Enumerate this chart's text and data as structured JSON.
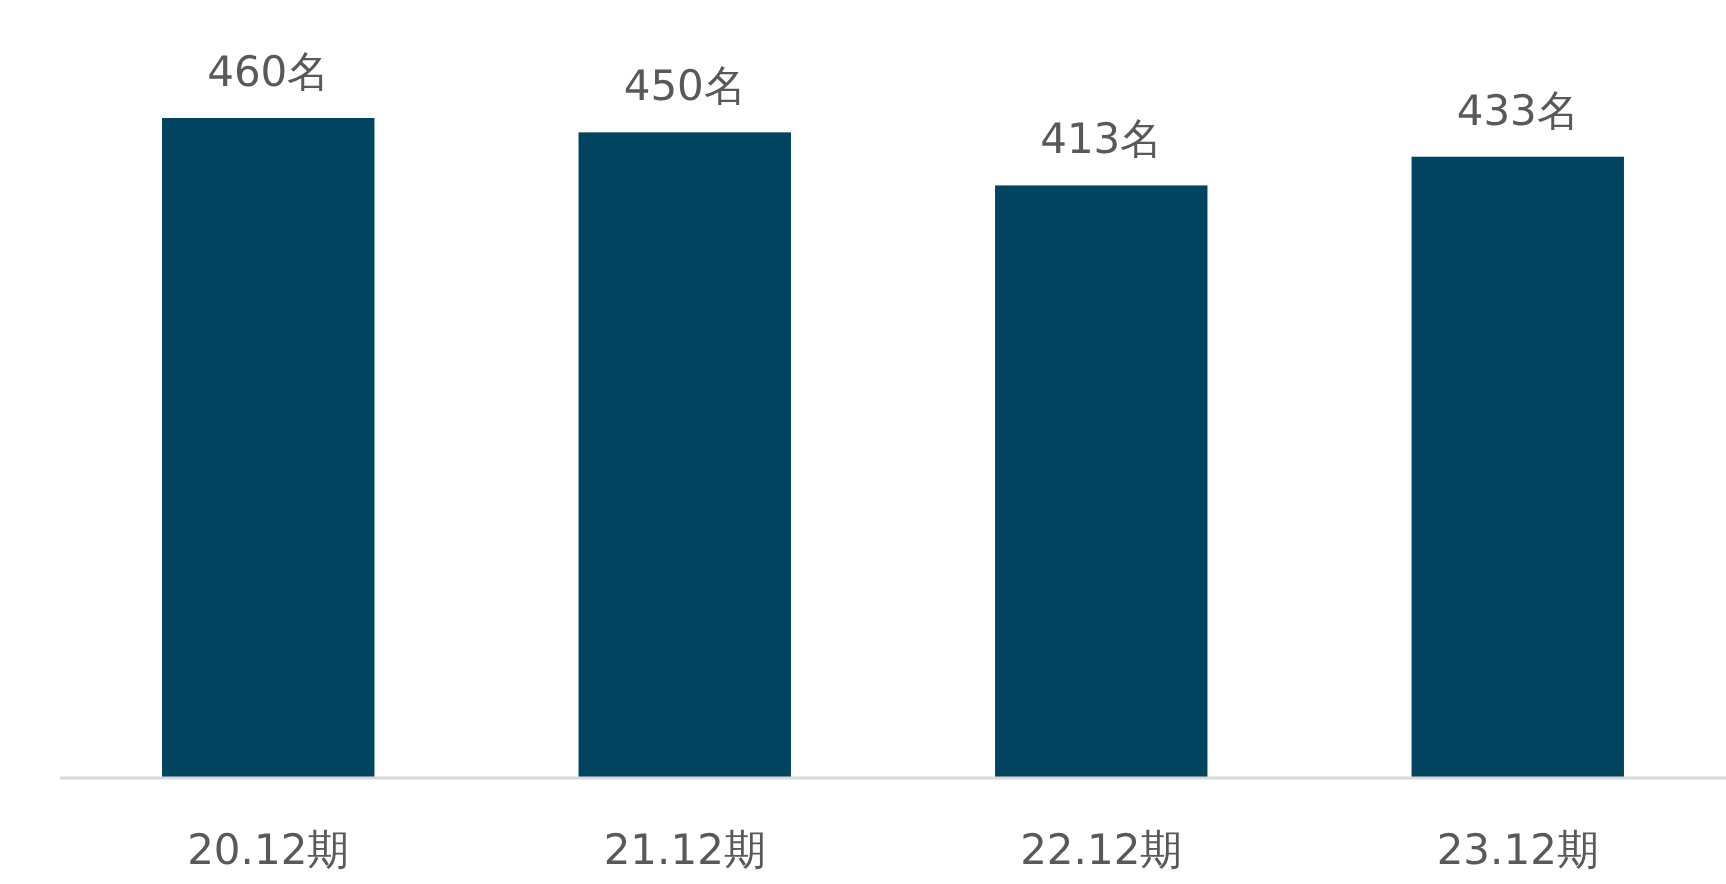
{
  "chart_data": {
    "type": "bar",
    "categories": [
      "20.12期",
      "21.12期",
      "22.12期",
      "23.12期"
    ],
    "values": [
      460,
      450,
      413,
      433
    ],
    "value_labels": [
      "460名",
      "450名",
      "413名",
      "433名"
    ],
    "color": "#00445f"
  }
}
